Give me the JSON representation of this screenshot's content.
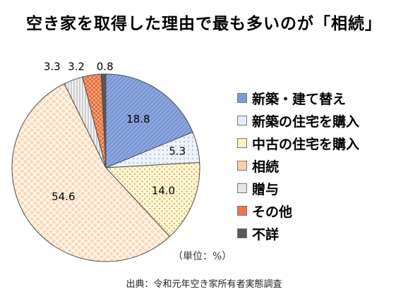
{
  "chart_data": {
    "type": "pie",
    "title": "空き家を取得した理由で最も多いのが「相続」",
    "unit_note": "（単位：%）",
    "source": "出典：令和元年空き家所有者実態調査",
    "start_angle_deg": 0,
    "direction": "clockwise",
    "slices": [
      {
        "label": "新築・建て替え",
        "value": 18.8,
        "display": "18.8",
        "color": "#8fa9de",
        "pattern": "diag-hatch"
      },
      {
        "label": "新築の住宅を購入",
        "value": 5.3,
        "display": "5.3",
        "color": "#dde8f7",
        "pattern": "grid-dots"
      },
      {
        "label": "中古の住宅を購入",
        "value": 14.0,
        "display": "14.0",
        "color": "#fff3cc",
        "pattern": "dots"
      },
      {
        "label": "相続",
        "value": 54.6,
        "display": "54.6",
        "color": "#fcd1a8",
        "pattern": "crosshatch"
      },
      {
        "label": "贈与",
        "value": 3.3,
        "display": "3.3",
        "color": "#e9e9e9",
        "pattern": "vertical-lines"
      },
      {
        "label": "その他",
        "value": 3.2,
        "display": "3.2",
        "color": "#e46c3a",
        "pattern": "checker"
      },
      {
        "label": "不詳",
        "value": 0.8,
        "display": "0.8",
        "color": "#595959",
        "pattern": "solid"
      }
    ]
  }
}
